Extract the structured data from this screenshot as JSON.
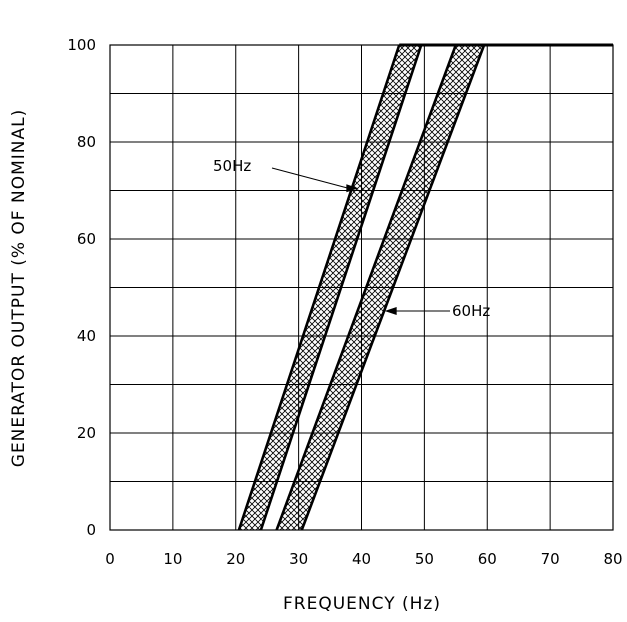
{
  "chart_data": {
    "type": "area",
    "title": "",
    "xlabel": "FREQUENCY (Hz)",
    "ylabel": "GENERATOR OUTPUT (% OF NOMINAL)",
    "xlim": [
      0,
      80
    ],
    "ylim": [
      0,
      100
    ],
    "xticks": [
      0,
      10,
      20,
      30,
      40,
      50,
      60,
      70,
      80
    ],
    "yticks": [
      0,
      20,
      40,
      60,
      80,
      100
    ],
    "grid": true,
    "legend": "none",
    "series": [
      {
        "name": "50Hz",
        "lower_boundary": [
          [
            20.5,
            0
          ],
          [
            46,
            100
          ]
        ],
        "upper_boundary": [
          [
            24,
            0
          ],
          [
            49.5,
            100
          ]
        ],
        "fill": "crosshatch"
      },
      {
        "name": "60Hz",
        "lower_boundary": [
          [
            26.5,
            0
          ],
          [
            55,
            100
          ]
        ],
        "upper_boundary": [
          [
            30.5,
            0
          ],
          [
            59.5,
            100
          ]
        ],
        "fill": "crosshatch"
      }
    ],
    "plateau": {
      "y": 100,
      "x_from": 46,
      "x_to": 80
    },
    "annotations": [
      {
        "text": "50Hz",
        "points_to": [
          39.5,
          75
        ]
      },
      {
        "text": "60Hz",
        "points_to": [
          44,
          45
        ]
      }
    ]
  },
  "colors": {
    "line": "#000000",
    "background": "#ffffff"
  }
}
